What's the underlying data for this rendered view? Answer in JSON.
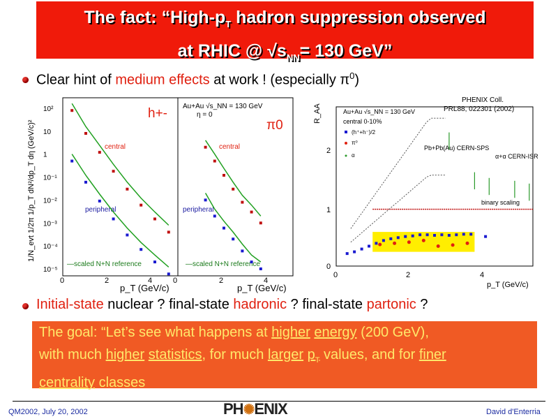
{
  "title": {
    "line1_prefix": "The fact:  “High-p",
    "line1_sub": "T",
    "line1_suffix": " hadron suppression observed",
    "line2_prefix": "at RHIC @ √s",
    "line2_sub": "NN",
    "line2_suffix": "= 130 GeV”"
  },
  "bullet1": {
    "pre": "Clear hint of ",
    "red": "medium effects",
    "post": " at work !   (especially π",
    "sup": "0",
    "end": ")"
  },
  "bullet2": {
    "a_red": "Initial-state",
    "b": " nuclear ?   final-state ",
    "c_red": "hadronic",
    "d": " ?   final-state ",
    "e_red": "partonic",
    "f": " ?"
  },
  "goal": {
    "p1": "The goal:  “Let’s see what happens at ",
    "u1": "higher",
    "p2": " ",
    "u2": "energy",
    "p3": " (200 GeV),",
    "p4": "with much ",
    "u3": "higher",
    "p5": " ",
    "u4": "statistics",
    "p6": ", for much ",
    "u5": "larger",
    "p7": " ",
    "u6": "p",
    "u6sub": "T",
    "p8": " values, and for  ",
    "u7": "finer",
    "u8": "centrality",
    "p9": " classes"
  },
  "footer": {
    "left": "QM2002, July 20, 2002",
    "logo_a": "PH",
    "logo_b": "ENIX",
    "right": "David d'Enterria"
  },
  "colors": {
    "title_bg": "#f01a0a",
    "goal_bg": "#f05a24",
    "goal_text": "#ffe86a",
    "accent_red": "#e02010",
    "band_yellow": "#ffee00",
    "footer_blue": "#1a2aa0"
  },
  "chart_data": [
    {
      "type": "scatter",
      "name_label": "h+-",
      "ylabel": "1/N_evt 1/2π 1/p_T dN²/dp_T dη (GeV/c)²",
      "xlabel": "p_T (GeV/c)",
      "x_ticks": [
        "0",
        "2",
        "4"
      ],
      "y_ticks": [
        "10²",
        "10",
        "1",
        "10⁻¹",
        "10⁻²",
        "10⁻³",
        "10⁻⁴",
        "10⁻⁵"
      ],
      "log_y": true,
      "annotations": [
        "central",
        "peripheral",
        "—scaled N+N reference"
      ],
      "series": [
        {
          "name": "central",
          "x": [
            0.4,
            1.0,
            1.6,
            2.2,
            2.8,
            3.4,
            4.0,
            4.6
          ],
          "y": [
            80,
            8,
            1.2,
            0.18,
            0.03,
            0.006,
            0.0015,
            0.0004
          ]
        },
        {
          "name": "peripheral",
          "x": [
            0.4,
            1.0,
            1.6,
            2.2,
            2.8,
            3.4,
            4.0,
            4.6
          ],
          "y": [
            0.5,
            0.06,
            0.009,
            0.0015,
            0.0003,
            7e-05,
            2e-05,
            6e-06
          ]
        }
      ]
    },
    {
      "type": "scatter",
      "name_label": "π0",
      "header": [
        "Au+Au √s_NN = 130 GeV",
        "η = 0"
      ],
      "xlabel": "p_T (GeV/c)",
      "x_ticks": [
        "0",
        "2",
        "4"
      ],
      "log_y": true,
      "annotations": [
        "central",
        "peripheral",
        "—scaled N+N reference"
      ],
      "series": [
        {
          "name": "central",
          "x": [
            1.2,
            1.6,
            2.0,
            2.4,
            2.8,
            3.2,
            3.6
          ],
          "y": [
            2,
            0.5,
            0.12,
            0.03,
            0.008,
            0.003,
            0.001
          ]
        },
        {
          "name": "peripheral",
          "x": [
            1.2,
            1.6,
            2.0,
            2.4,
            2.8,
            3.2,
            3.6
          ],
          "y": [
            0.01,
            0.002,
            0.0006,
            0.0002,
            6e-05,
            2e-05,
            1e-05
          ]
        }
      ]
    },
    {
      "type": "scatter",
      "ylabel": "R_AA",
      "xlabel": "p_T (GeV/c)",
      "x_ticks": [
        "0",
        "2",
        "4"
      ],
      "y_ticks": [
        "0",
        "1",
        "2"
      ],
      "xlim": [
        0,
        5.4
      ],
      "ylim": [
        0,
        2.8
      ],
      "header": [
        "PHENIX Coll.",
        "PRL88, 022301 (2002)"
      ],
      "legend": [
        "Au+Au √s_NN = 130 GeV",
        "central 0-10%",
        "(h⁺+h⁻)/2",
        "π⁰",
        "α"
      ],
      "annotations": [
        "Pb+Pb(Au) CERN-SPS",
        "α+α CERN-ISR",
        "binary scaling"
      ],
      "series": [
        {
          "name": "(h++h-)/2",
          "x": [
            0.3,
            0.5,
            0.7,
            0.9,
            1.1,
            1.3,
            1.5,
            1.7,
            1.9,
            2.1,
            2.3,
            2.5,
            2.7,
            2.9,
            3.1,
            3.3,
            3.5,
            3.7,
            4.1
          ],
          "y": [
            0.22,
            0.25,
            0.3,
            0.35,
            0.4,
            0.45,
            0.48,
            0.5,
            0.52,
            0.53,
            0.55,
            0.55,
            0.54,
            0.55,
            0.54,
            0.55,
            0.56,
            0.56,
            0.52
          ]
        },
        {
          "name": "π0",
          "x": [
            1.2,
            1.6,
            2.0,
            2.4,
            2.8,
            3.2,
            3.6
          ],
          "y": [
            0.38,
            0.4,
            0.42,
            0.45,
            0.35,
            0.37,
            0.4
          ]
        },
        {
          "name": "binary scaling",
          "x": [
            1.0,
            5.4
          ],
          "y": [
            1.0,
            1.0
          ]
        }
      ]
    }
  ]
}
